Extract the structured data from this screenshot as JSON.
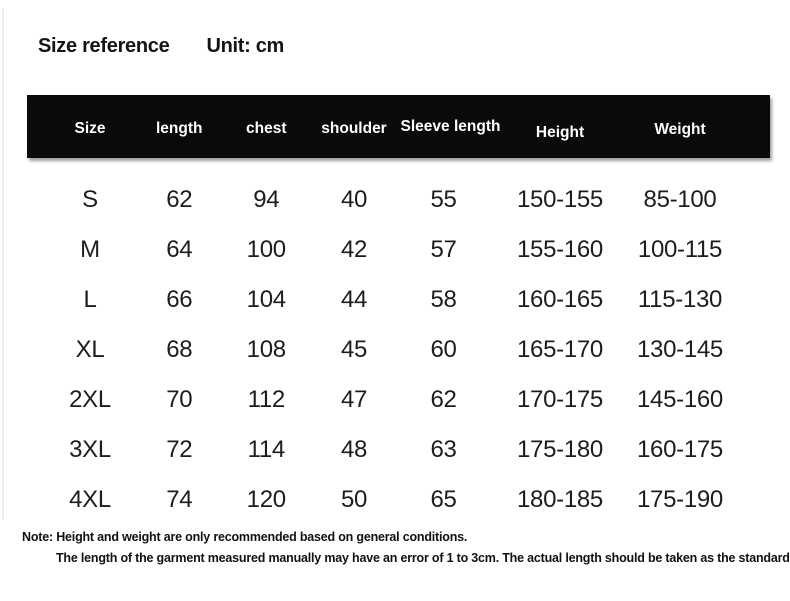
{
  "title": {
    "main": "Size reference",
    "unit": "Unit: cm"
  },
  "table": {
    "columns": [
      "Size",
      "length",
      "chest",
      "shoulder",
      "Sleeve length",
      "Height",
      "Weight"
    ],
    "rows": [
      [
        "S",
        "62",
        "94",
        "40",
        "55",
        "150-155",
        "85-100"
      ],
      [
        "M",
        "64",
        "100",
        "42",
        "57",
        "155-160",
        "100-115"
      ],
      [
        "L",
        "66",
        "104",
        "44",
        "58",
        "160-165",
        "115-130"
      ],
      [
        "XL",
        "68",
        "108",
        "45",
        "60",
        "165-170",
        "130-145"
      ],
      [
        "2XL",
        "70",
        "112",
        "47",
        "62",
        "170-175",
        "145-160"
      ],
      [
        "3XL",
        "72",
        "114",
        "48",
        "63",
        "175-180",
        "160-175"
      ],
      [
        "4XL",
        "74",
        "120",
        "50",
        "65",
        "180-185",
        "175-190"
      ]
    ]
  },
  "notes": {
    "line1": "Note: Height and weight are only recommended based on general conditions.",
    "line2": "The length of the garment measured manually may have an error of 1 to 3cm. The actual length should be taken as the standard"
  },
  "colors": {
    "header_bg": "#0a0a0a",
    "header_text": "#ffffff",
    "body_text": "#1d1d1d",
    "background": "#ffffff"
  }
}
